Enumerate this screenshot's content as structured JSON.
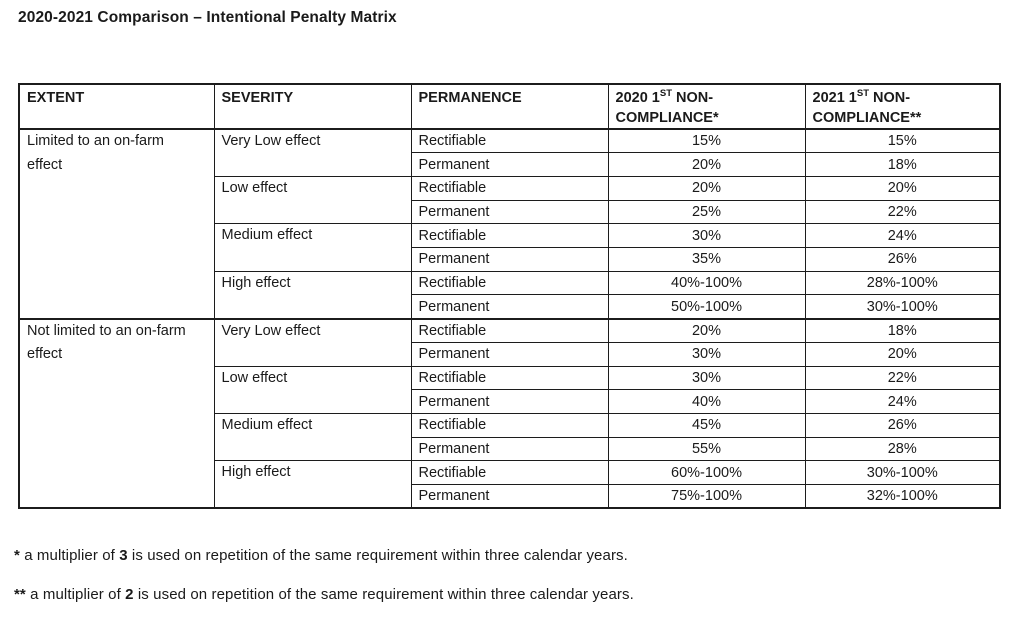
{
  "title": "2020-2021 Comparison – Intentional Penalty Matrix",
  "table": {
    "headers": {
      "extent": "EXTENT",
      "severity": "SEVERITY",
      "permanence": "PERMANENCE",
      "col2020": {
        "line1": "2020 1",
        "sup": "ST",
        "line1_rest": " NON-",
        "line2": "COMPLIANCE*"
      },
      "col2021": {
        "line1": "2021 1",
        "sup": "ST",
        "line1_rest": " NON-",
        "line2": "COMPLIANCE**"
      }
    },
    "sections": [
      {
        "extent": "Limited to an on-farm effect",
        "groups": [
          {
            "severity": "Very Low effect",
            "rows": [
              {
                "permanence": "Rectifiable",
                "y2020": "15%",
                "y2021": "15%"
              },
              {
                "permanence": "Permanent",
                "y2020": "20%",
                "y2021": "18%"
              }
            ]
          },
          {
            "severity": "Low effect",
            "rows": [
              {
                "permanence": "Rectifiable",
                "y2020": "20%",
                "y2021": "20%"
              },
              {
                "permanence": "Permanent",
                "y2020": "25%",
                "y2021": "22%"
              }
            ]
          },
          {
            "severity": "Medium effect",
            "rows": [
              {
                "permanence": "Rectifiable",
                "y2020": "30%",
                "y2021": "24%"
              },
              {
                "permanence": "Permanent",
                "y2020": "35%",
                "y2021": "26%"
              }
            ]
          },
          {
            "severity": "High effect",
            "rows": [
              {
                "permanence": "Rectifiable",
                "y2020": "40%-100%",
                "y2021": "28%-100%"
              },
              {
                "permanence": "Permanent",
                "y2020": "50%-100%",
                "y2021": "30%-100%"
              }
            ]
          }
        ]
      },
      {
        "extent": "Not limited to an on-farm effect",
        "groups": [
          {
            "severity": "Very Low effect",
            "rows": [
              {
                "permanence": "Rectifiable",
                "y2020": "20%",
                "y2021": "18%"
              },
              {
                "permanence": "Permanent",
                "y2020": "30%",
                "y2021": "20%"
              }
            ]
          },
          {
            "severity": "Low effect",
            "rows": [
              {
                "permanence": "Rectifiable",
                "y2020": "30%",
                "y2021": "22%"
              },
              {
                "permanence": "Permanent",
                "y2020": "40%",
                "y2021": "24%"
              }
            ]
          },
          {
            "severity": "Medium effect",
            "rows": [
              {
                "permanence": "Rectifiable",
                "y2020": "45%",
                "y2021": "26%"
              },
              {
                "permanence": "Permanent",
                "y2020": "55%",
                "y2021": "28%"
              }
            ]
          },
          {
            "severity": "High effect",
            "rows": [
              {
                "permanence": "Rectifiable",
                "y2020": "60%-100%",
                "y2021": "30%-100%"
              },
              {
                "permanence": "Permanent",
                "y2020": "75%-100%",
                "y2021": "32%-100%"
              }
            ]
          }
        ]
      }
    ]
  },
  "footnotes": [
    {
      "marker": "*",
      "text_before": " a multiplier of ",
      "value": "3",
      "text_after": " is used on repetition of the same requirement within three calendar years."
    },
    {
      "marker": "**",
      "text_before": " a multiplier of ",
      "value": "2",
      "text_after": " is used on repetition of the same requirement within three calendar years."
    }
  ]
}
